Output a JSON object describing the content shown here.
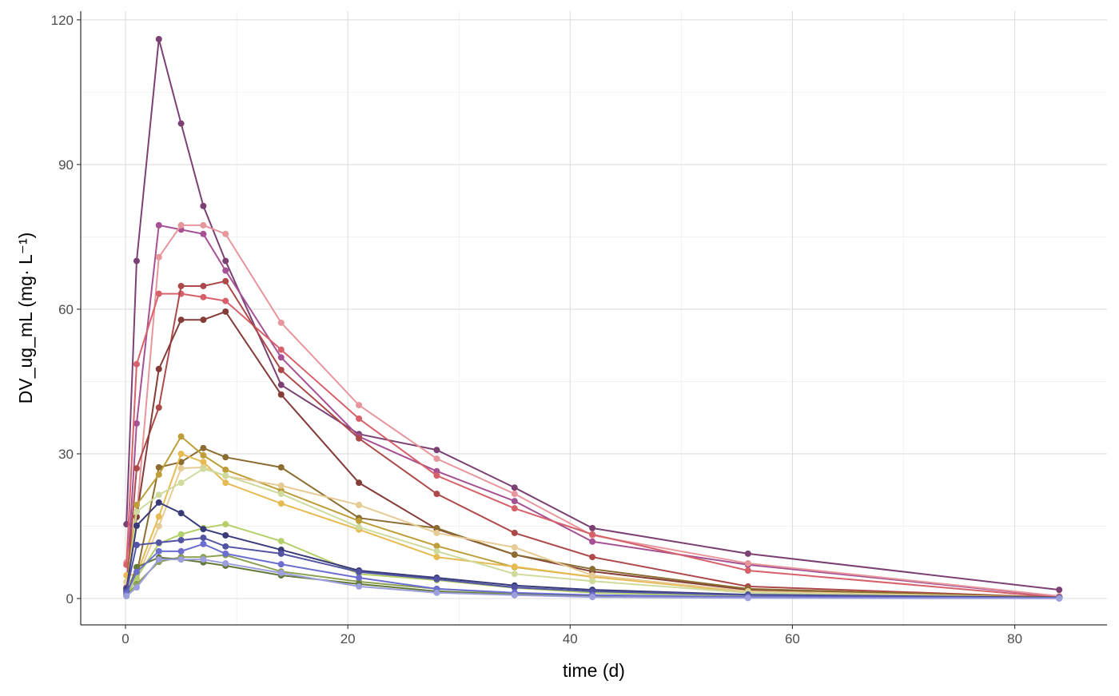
{
  "chart_data": {
    "type": "line",
    "title": "",
    "xlabel": "time (d)",
    "ylabel": "DV_ug_mL (mg· L⁻¹)",
    "xlim": [
      -4.03,
      88.3
    ],
    "ylim": [
      -5.47,
      121.8
    ],
    "xticks": [
      0,
      20,
      40,
      60,
      80
    ],
    "yticks": [
      0,
      30,
      60,
      90,
      120
    ],
    "x_minor": [
      10,
      30,
      50,
      70
    ],
    "y_minor": [
      15,
      45,
      75,
      105
    ],
    "grid": true,
    "legend": "none",
    "markers": true,
    "x": [
      0.083,
      1,
      3,
      5,
      7,
      9,
      14,
      21,
      28,
      35,
      42,
      56,
      84
    ],
    "series": [
      {
        "color": "#7B4173",
        "values": [
          15.4,
          70,
          116,
          98.5,
          81.4,
          70,
          44.3,
          34.1,
          30.8,
          23,
          14.6,
          9.3,
          1.8
        ]
      },
      {
        "color": "#A55194",
        "values": [
          2.3,
          36.3,
          77.4,
          76.5,
          75.6,
          68,
          50,
          33.6,
          26.4,
          20.2,
          11.8,
          7,
          0.4
        ]
      },
      {
        "color": "#E7969C",
        "values": [
          7.5,
          17,
          70.8,
          77.4,
          77.4,
          75.6,
          57.2,
          40.1,
          29,
          21.7,
          13.1,
          7.3,
          0.5
        ]
      },
      {
        "color": "#D6616B",
        "values": [
          7,
          48.6,
          63.2,
          63.2,
          62.5,
          61.7,
          51.6,
          37.3,
          25.5,
          18.7,
          13.3,
          5.8,
          0.2
        ]
      },
      {
        "color": "#AD494A",
        "values": [
          1.8,
          27,
          39.6,
          64.8,
          64.8,
          65.8,
          47.4,
          33.2,
          21.7,
          13.6,
          8.6,
          2.5,
          0.2
        ]
      },
      {
        "color": "#843C39",
        "values": [
          1.5,
          16.9,
          47.6,
          57.8,
          57.8,
          59.5,
          42.3,
          24,
          14.4,
          9.1,
          5.6,
          1.8,
          0.2
        ]
      },
      {
        "color": "#8C6D31",
        "values": [
          1.5,
          5,
          27.2,
          28.3,
          31.2,
          29.3,
          27.2,
          16.7,
          14.6,
          9.1,
          6.1,
          2,
          0.2
        ]
      },
      {
        "color": "#BD9E39",
        "values": [
          2,
          19.4,
          25.7,
          33.6,
          29.7,
          26.7,
          22.4,
          16.1,
          10.9,
          6.5,
          4.5,
          1.5,
          0.2
        ]
      },
      {
        "color": "#E7BA52",
        "values": [
          4.8,
          5,
          17,
          30,
          28.3,
          24,
          19.7,
          14.3,
          8.6,
          6.6,
          4.5,
          1.3,
          0.1
        ]
      },
      {
        "color": "#E7CB94",
        "values": [
          3.5,
          4,
          15,
          27,
          27.2,
          25.4,
          23.4,
          19.4,
          13.6,
          10.6,
          4.8,
          1.5,
          0.1
        ]
      },
      {
        "color": "#CEDB9C",
        "values": [
          0.8,
          18,
          21.5,
          24,
          26.9,
          25.5,
          21.7,
          14.8,
          9.8,
          5.1,
          3.6,
          1.2,
          0.1
        ]
      },
      {
        "color": "#B5CF6B",
        "values": [
          0.5,
          4.3,
          11.4,
          13.3,
          14.6,
          15.4,
          11.9,
          5.1,
          3.8,
          2.2,
          1.2,
          0.5,
          0.1
        ]
      },
      {
        "color": "#8CA252",
        "values": [
          0.6,
          3,
          7.6,
          8.6,
          8.6,
          9,
          5.6,
          3.5,
          2,
          1,
          0.7,
          0.3,
          0.1
        ]
      },
      {
        "color": "#637939",
        "values": [
          1,
          6.5,
          8.5,
          8.1,
          7.5,
          6.8,
          4.8,
          3,
          1.5,
          0.8,
          0.5,
          0.2,
          0.1
        ]
      },
      {
        "color": "#393B79",
        "values": [
          2,
          15.1,
          19.9,
          17.7,
          14.4,
          13.1,
          10.1,
          5.8,
          4.3,
          2.7,
          1.8,
          0.8,
          0.2
        ]
      },
      {
        "color": "#5254A3",
        "values": [
          1.5,
          11.1,
          11.6,
          12.1,
          12.6,
          10.8,
          9.3,
          5.5,
          4,
          2.3,
          1.5,
          0.7,
          0.1
        ]
      },
      {
        "color": "#6B6ECF",
        "values": [
          1,
          5.5,
          9.8,
          9.8,
          11.3,
          9.3,
          7.1,
          4.3,
          2,
          1.2,
          0.7,
          0.3,
          0.1
        ]
      },
      {
        "color": "#9C9EDE",
        "values": [
          0.5,
          2.3,
          8.1,
          8.1,
          8.1,
          7.3,
          5.3,
          2.5,
          1.2,
          0.7,
          0.3,
          0.1,
          0
        ]
      }
    ]
  }
}
